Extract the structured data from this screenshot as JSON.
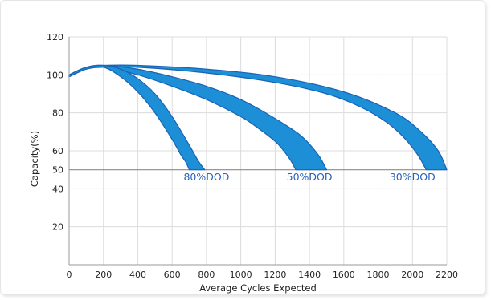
{
  "chart_data": {
    "type": "area",
    "xlabel": "Average Cycles Expected",
    "ylabel": "Capacity(%)",
    "xlim": [
      0,
      2200
    ],
    "ylim": [
      0,
      120
    ],
    "x_ticks": [
      0,
      200,
      400,
      600,
      800,
      1000,
      1200,
      1400,
      1600,
      1800,
      2000,
      2200
    ],
    "y_ticks": [
      20,
      40,
      50,
      60,
      80,
      100,
      120
    ],
    "x_grid": true,
    "y_grid": true,
    "series_color": "#1c8fd6",
    "series_edge_color": "#1a62b5",
    "label_color": "#2a62b8",
    "series": [
      {
        "name": "80%DOD",
        "upper": {
          "x": [
            0,
            100,
            200,
            300,
            400,
            500,
            600,
            700,
            750,
            790
          ],
          "y": [
            100,
            104,
            105,
            103,
            98,
            90,
            78,
            63,
            55,
            50
          ]
        },
        "lower": {
          "x": [
            0,
            100,
            200,
            300,
            400,
            500,
            600,
            650,
            680,
            700
          ],
          "y": [
            99,
            103,
            104,
            99,
            91,
            80,
            66,
            58,
            54,
            50
          ]
        },
        "label_at": [
          800,
          46
        ]
      },
      {
        "name": "50%DOD",
        "upper": {
          "x": [
            0,
            100,
            200,
            400,
            600,
            800,
            1000,
            1200,
            1350,
            1450,
            1500
          ],
          "y": [
            100,
            104,
            105,
            103,
            99,
            94,
            87,
            77,
            68,
            58,
            50
          ]
        },
        "lower": {
          "x": [
            0,
            100,
            200,
            400,
            600,
            800,
            1000,
            1100,
            1200,
            1250,
            1290,
            1320
          ],
          "y": [
            99,
            103,
            104,
            100,
            94,
            87,
            78,
            72,
            65,
            60,
            55,
            50
          ]
        },
        "label_at": [
          1400,
          46
        ]
      },
      {
        "name": "30%DOD",
        "upper": {
          "x": [
            0,
            100,
            200,
            400,
            800,
            1200,
            1600,
            1900,
            2050,
            2150,
            2200
          ],
          "y": [
            100,
            104,
            105,
            105,
            103,
            99,
            91,
            80,
            70,
            60,
            50
          ]
        },
        "lower": {
          "x": [
            0,
            100,
            200,
            400,
            800,
            1200,
            1500,
            1700,
            1850,
            1950,
            2030,
            2080
          ],
          "y": [
            99,
            103,
            104,
            104,
            101,
            96,
            90,
            83,
            75,
            67,
            58,
            50
          ]
        },
        "label_at": [
          2000,
          46
        ]
      }
    ]
  }
}
